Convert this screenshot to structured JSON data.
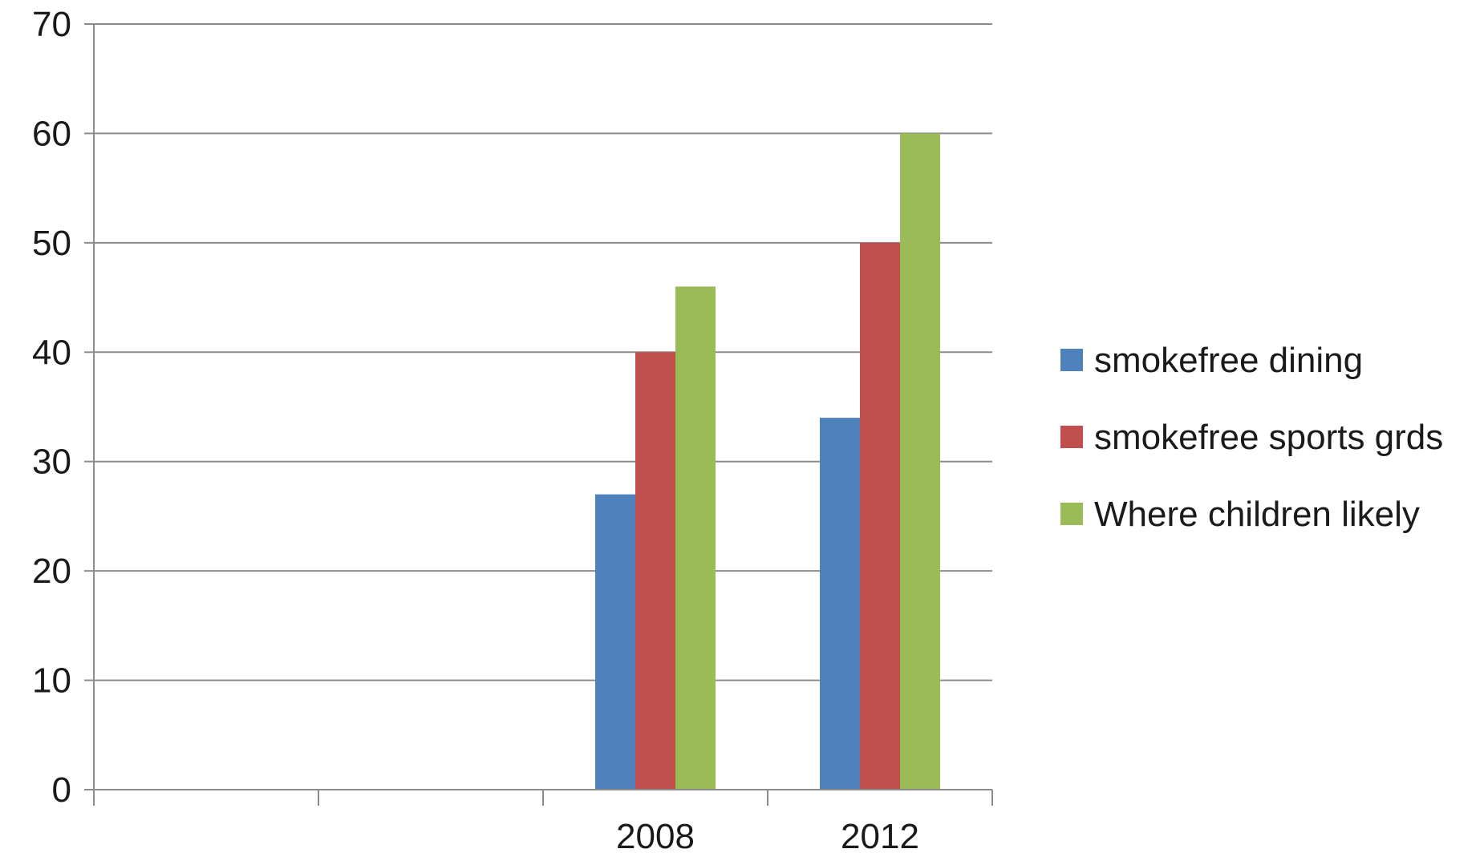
{
  "chart_data": {
    "type": "bar",
    "title": "",
    "xlabel": "",
    "ylabel": "",
    "categories": [
      "",
      "",
      "2008",
      "2012"
    ],
    "series": [
      {
        "name": "smokefree dining",
        "values": [
          null,
          null,
          27,
          34
        ],
        "color": "#4f81bd"
      },
      {
        "name": "smokefree sports grds",
        "values": [
          null,
          null,
          40,
          50
        ],
        "color": "#c0504d"
      },
      {
        "name": "Where children likely",
        "values": [
          null,
          null,
          46,
          60
        ],
        "color": "#9bbb59"
      }
    ],
    "ylim": [
      0,
      70
    ],
    "yticks": [
      0,
      10,
      20,
      30,
      40,
      50,
      60,
      70
    ],
    "grid": true,
    "legend_position": "right"
  }
}
